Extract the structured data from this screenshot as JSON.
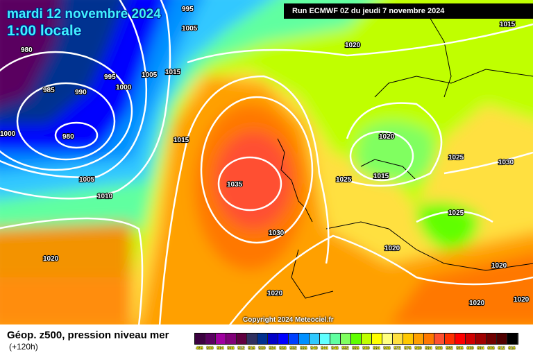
{
  "header": {
    "date": "mardi 12 novembre 2024",
    "time": "1:00 locale",
    "run": "Run ECMWF 0Z du jeudi 7 novembre 2024"
  },
  "copyright": "Copyright 2024 Meteociel.fr",
  "footer": {
    "title": "Géop. z500, pression niveau mer",
    "subtitle": "(+120h)"
  },
  "legend": {
    "values": [
      "496",
      "500",
      "504",
      "508",
      "512",
      "516",
      "520",
      "524",
      "528",
      "532",
      "536",
      "540",
      "544",
      "548",
      "552",
      "556",
      "560",
      "564",
      "568",
      "572",
      "576",
      "580",
      "584",
      "588",
      "592",
      "596",
      "600",
      "604",
      "608",
      "612",
      "616"
    ],
    "colors": [
      "#3c0040",
      "#5a0060",
      "#a000a0",
      "#800078",
      "#600040",
      "#303060",
      "#003090",
      "#0000c8",
      "#0000ff",
      "#0040ff",
      "#0090ff",
      "#30c8ff",
      "#60ffff",
      "#60ffa0",
      "#80ff60",
      "#60ff00",
      "#c0ff00",
      "#ffff00",
      "#ffff80",
      "#ffe040",
      "#ffc800",
      "#ffa000",
      "#ff7800",
      "#ff5030",
      "#ff3000",
      "#ff0000",
      "#d00000",
      "#a00000",
      "#700000",
      "#500000",
      "#000000"
    ]
  },
  "isobar_labels": [
    "995",
    "1005",
    "980",
    "985",
    "990",
    "995",
    "1000",
    "1005",
    "1015",
    "980",
    "1000",
    "1005",
    "1010",
    "1015",
    "1035",
    "1030",
    "1020",
    "1015",
    "1020",
    "1015",
    "1025",
    "1025",
    "1030",
    "1025",
    "1020",
    "1020",
    "1020",
    "1020",
    "1020",
    "1020"
  ]
}
